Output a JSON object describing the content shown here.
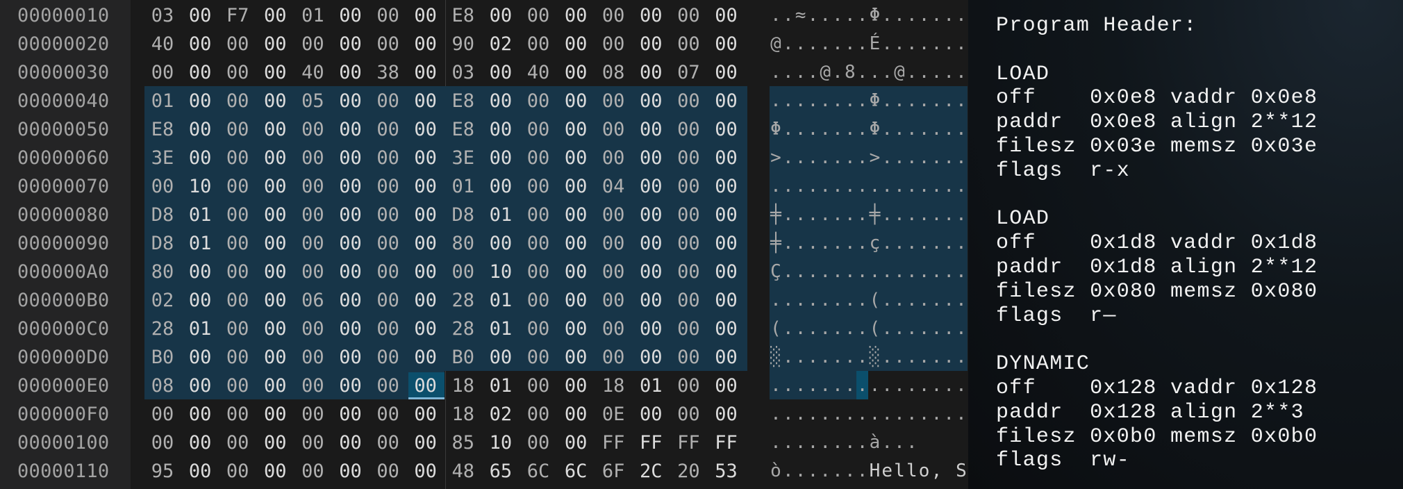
{
  "hex_view": {
    "rows": [
      {
        "offset": "00000010",
        "bytes": [
          "03",
          "00",
          "F7",
          "00",
          "01",
          "00",
          "00",
          "00",
          "E8",
          "00",
          "00",
          "00",
          "00",
          "00",
          "00",
          "00"
        ],
        "ascii": [
          ".",
          ".",
          "≈",
          ".",
          ".",
          ".",
          ".",
          ".",
          "Φ",
          ".",
          ".",
          ".",
          ".",
          ".",
          ".",
          "."
        ]
      },
      {
        "offset": "00000020",
        "bytes": [
          "40",
          "00",
          "00",
          "00",
          "00",
          "00",
          "00",
          "00",
          "90",
          "02",
          "00",
          "00",
          "00",
          "00",
          "00",
          "00"
        ],
        "ascii": [
          "@",
          ".",
          ".",
          ".",
          ".",
          ".",
          ".",
          ".",
          "É",
          ".",
          ".",
          ".",
          ".",
          ".",
          ".",
          "."
        ]
      },
      {
        "offset": "00000030",
        "bytes": [
          "00",
          "00",
          "00",
          "00",
          "40",
          "00",
          "38",
          "00",
          "03",
          "00",
          "40",
          "00",
          "08",
          "00",
          "07",
          "00"
        ],
        "ascii": [
          ".",
          ".",
          ".",
          ".",
          "@",
          ".",
          "8",
          ".",
          ".",
          ".",
          "@",
          ".",
          ".",
          ".",
          ".",
          "."
        ]
      },
      {
        "offset": "00000040",
        "bytes": [
          "01",
          "00",
          "00",
          "00",
          "05",
          "00",
          "00",
          "00",
          "E8",
          "00",
          "00",
          "00",
          "00",
          "00",
          "00",
          "00"
        ],
        "ascii": [
          ".",
          ".",
          ".",
          ".",
          ".",
          ".",
          ".",
          ".",
          "Φ",
          ".",
          ".",
          ".",
          ".",
          ".",
          ".",
          "."
        ]
      },
      {
        "offset": "00000050",
        "bytes": [
          "E8",
          "00",
          "00",
          "00",
          "00",
          "00",
          "00",
          "00",
          "E8",
          "00",
          "00",
          "00",
          "00",
          "00",
          "00",
          "00"
        ],
        "ascii": [
          "Φ",
          ".",
          ".",
          ".",
          ".",
          ".",
          ".",
          ".",
          "Φ",
          ".",
          ".",
          ".",
          ".",
          ".",
          ".",
          "."
        ]
      },
      {
        "offset": "00000060",
        "bytes": [
          "3E",
          "00",
          "00",
          "00",
          "00",
          "00",
          "00",
          "00",
          "3E",
          "00",
          "00",
          "00",
          "00",
          "00",
          "00",
          "00"
        ],
        "ascii": [
          ">",
          ".",
          ".",
          ".",
          ".",
          ".",
          ".",
          ".",
          ">",
          ".",
          ".",
          ".",
          ".",
          ".",
          ".",
          "."
        ]
      },
      {
        "offset": "00000070",
        "bytes": [
          "00",
          "10",
          "00",
          "00",
          "00",
          "00",
          "00",
          "00",
          "01",
          "00",
          "00",
          "00",
          "04",
          "00",
          "00",
          "00"
        ],
        "ascii": [
          ".",
          ".",
          ".",
          ".",
          ".",
          ".",
          ".",
          ".",
          ".",
          ".",
          ".",
          ".",
          ".",
          ".",
          ".",
          "."
        ]
      },
      {
        "offset": "00000080",
        "bytes": [
          "D8",
          "01",
          "00",
          "00",
          "00",
          "00",
          "00",
          "00",
          "D8",
          "01",
          "00",
          "00",
          "00",
          "00",
          "00",
          "00"
        ],
        "ascii": [
          "╪",
          ".",
          ".",
          ".",
          ".",
          ".",
          ".",
          ".",
          "╪",
          ".",
          ".",
          ".",
          ".",
          ".",
          ".",
          "."
        ]
      },
      {
        "offset": "00000090",
        "bytes": [
          "D8",
          "01",
          "00",
          "00",
          "00",
          "00",
          "00",
          "00",
          "80",
          "00",
          "00",
          "00",
          "00",
          "00",
          "00",
          "00"
        ],
        "ascii": [
          "╪",
          ".",
          ".",
          ".",
          ".",
          ".",
          ".",
          ".",
          "ç",
          ".",
          ".",
          ".",
          ".",
          ".",
          ".",
          "."
        ]
      },
      {
        "offset": "000000A0",
        "bytes": [
          "80",
          "00",
          "00",
          "00",
          "00",
          "00",
          "00",
          "00",
          "00",
          "10",
          "00",
          "00",
          "00",
          "00",
          "00",
          "00"
        ],
        "ascii": [
          "Ç",
          ".",
          ".",
          ".",
          ".",
          ".",
          ".",
          ".",
          ".",
          ".",
          ".",
          ".",
          ".",
          ".",
          ".",
          "."
        ]
      },
      {
        "offset": "000000B0",
        "bytes": [
          "02",
          "00",
          "00",
          "00",
          "06",
          "00",
          "00",
          "00",
          "28",
          "01",
          "00",
          "00",
          "00",
          "00",
          "00",
          "00"
        ],
        "ascii": [
          ".",
          ".",
          ".",
          ".",
          ".",
          ".",
          ".",
          ".",
          "(",
          ".",
          ".",
          ".",
          ".",
          ".",
          ".",
          "."
        ]
      },
      {
        "offset": "000000C0",
        "bytes": [
          "28",
          "01",
          "00",
          "00",
          "00",
          "00",
          "00",
          "00",
          "28",
          "01",
          "00",
          "00",
          "00",
          "00",
          "00",
          "00"
        ],
        "ascii": [
          "(",
          ".",
          ".",
          ".",
          ".",
          ".",
          ".",
          ".",
          "(",
          ".",
          ".",
          ".",
          ".",
          ".",
          ".",
          "."
        ]
      },
      {
        "offset": "000000D0",
        "bytes": [
          "B0",
          "00",
          "00",
          "00",
          "00",
          "00",
          "00",
          "00",
          "B0",
          "00",
          "00",
          "00",
          "00",
          "00",
          "00",
          "00"
        ],
        "ascii": [
          "░",
          ".",
          ".",
          ".",
          ".",
          ".",
          ".",
          ".",
          "░",
          ".",
          ".",
          ".",
          ".",
          ".",
          ".",
          "."
        ]
      },
      {
        "offset": "000000E0",
        "bytes": [
          "08",
          "00",
          "00",
          "00",
          "00",
          "00",
          "00",
          "00",
          "18",
          "01",
          "00",
          "00",
          "18",
          "01",
          "00",
          "00"
        ],
        "ascii": [
          ".",
          ".",
          ".",
          ".",
          ".",
          ".",
          ".",
          ".",
          ".",
          ".",
          ".",
          ".",
          ".",
          ".",
          ".",
          "."
        ]
      },
      {
        "offset": "000000F0",
        "bytes": [
          "00",
          "00",
          "00",
          "00",
          "00",
          "00",
          "00",
          "00",
          "18",
          "02",
          "00",
          "00",
          "0E",
          "00",
          "00",
          "00"
        ],
        "ascii": [
          ".",
          ".",
          ".",
          ".",
          ".",
          ".",
          ".",
          ".",
          ".",
          ".",
          ".",
          ".",
          ".",
          ".",
          ".",
          "."
        ]
      },
      {
        "offset": "00000100",
        "bytes": [
          "00",
          "00",
          "00",
          "00",
          "00",
          "00",
          "00",
          "00",
          "85",
          "10",
          "00",
          "00",
          "FF",
          "FF",
          "FF",
          "FF"
        ],
        "ascii": [
          ".",
          ".",
          ".",
          ".",
          ".",
          ".",
          ".",
          ".",
          "à",
          ".",
          ".",
          ".",
          " ",
          " ",
          " ",
          " "
        ]
      },
      {
        "offset": "00000110",
        "bytes": [
          "95",
          "00",
          "00",
          "00",
          "00",
          "00",
          "00",
          "00",
          "48",
          "65",
          "6C",
          "6C",
          "6F",
          "2C",
          "20",
          "53"
        ],
        "ascii": [
          "ò",
          ".",
          ".",
          ".",
          ".",
          ".",
          ".",
          ".",
          "H",
          "e",
          "l",
          "l",
          "o",
          ",",
          " ",
          "S"
        ]
      }
    ],
    "selection": {
      "start_offset": "00000040",
      "end_offset": "000000E7"
    },
    "cursor_offset": "000000E7",
    "colors": {
      "selection": "#173548",
      "cursor": "#0b4f6c"
    }
  },
  "program_header": {
    "title": "Program Header:",
    "segments": [
      {
        "type": "LOAD",
        "lines": [
          "off    0x0e8 vaddr 0x0e8",
          "paddr  0x0e8 align 2**12",
          "filesz 0x03e memsz 0x03e",
          "flags  r-x"
        ]
      },
      {
        "type": "LOAD",
        "lines": [
          "off    0x1d8 vaddr 0x1d8",
          "paddr  0x1d8 align 2**12",
          "filesz 0x080 memsz 0x080",
          "flags  r—"
        ]
      },
      {
        "type": "DYNAMIC",
        "lines": [
          "off    0x128 vaddr 0x128",
          "paddr  0x128 align 2**3",
          "filesz 0x0b0 memsz 0x0b0",
          "flags  rw-"
        ]
      }
    ]
  }
}
